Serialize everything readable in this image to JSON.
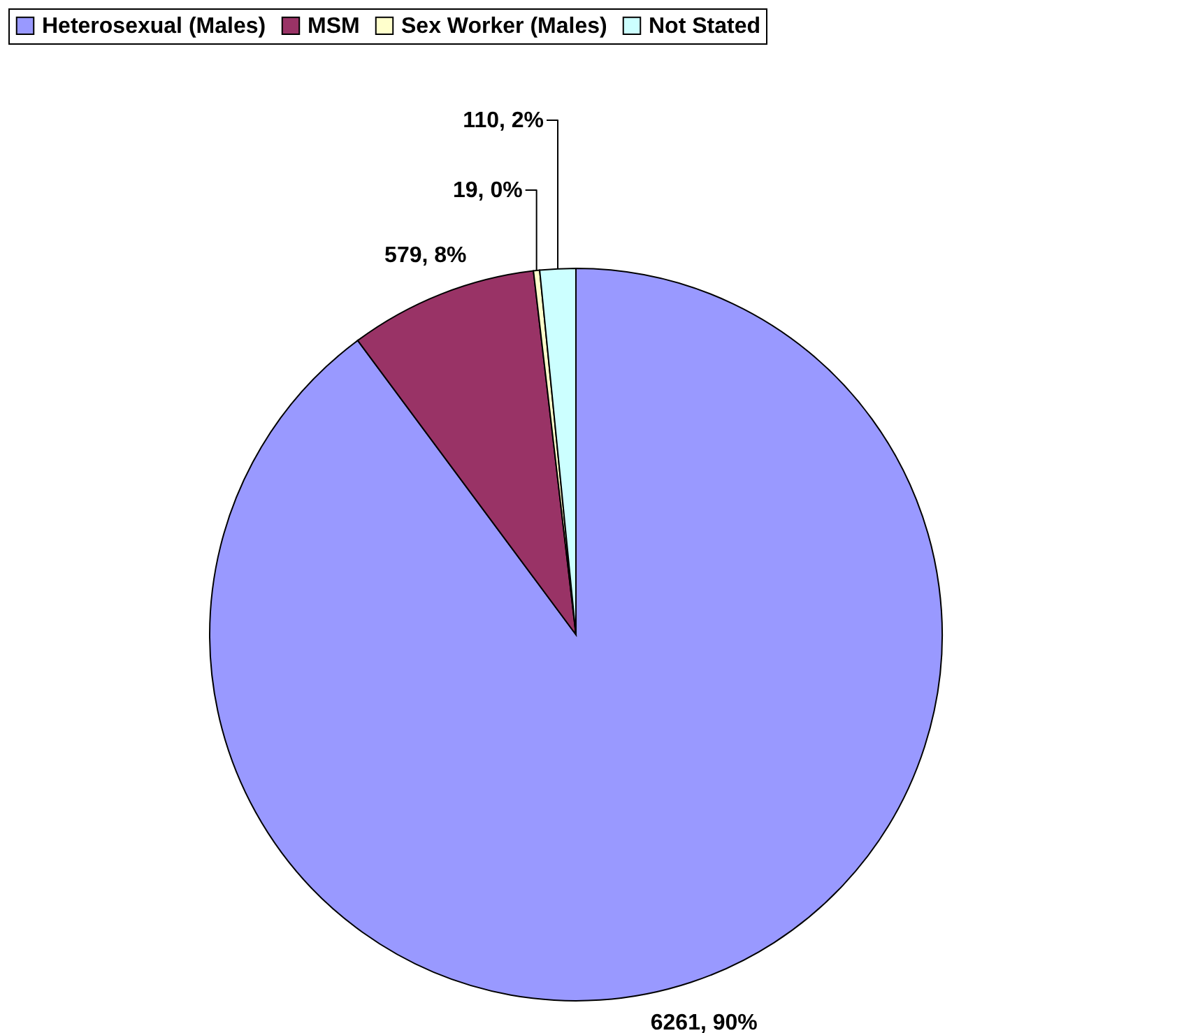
{
  "chart_data": {
    "type": "pie",
    "categories": [
      "Heterosexual (Males)",
      "MSM",
      "Sex Worker (Males)",
      "Not Stated"
    ],
    "values": [
      6261,
      579,
      19,
      110
    ],
    "colors": [
      "#9999ff",
      "#993366",
      "#ffffcc",
      "#ccffff"
    ],
    "value_labels": [
      "6261, 90%",
      "579, 8%",
      "19, 0%",
      "110, 2%"
    ],
    "legend": "top"
  }
}
